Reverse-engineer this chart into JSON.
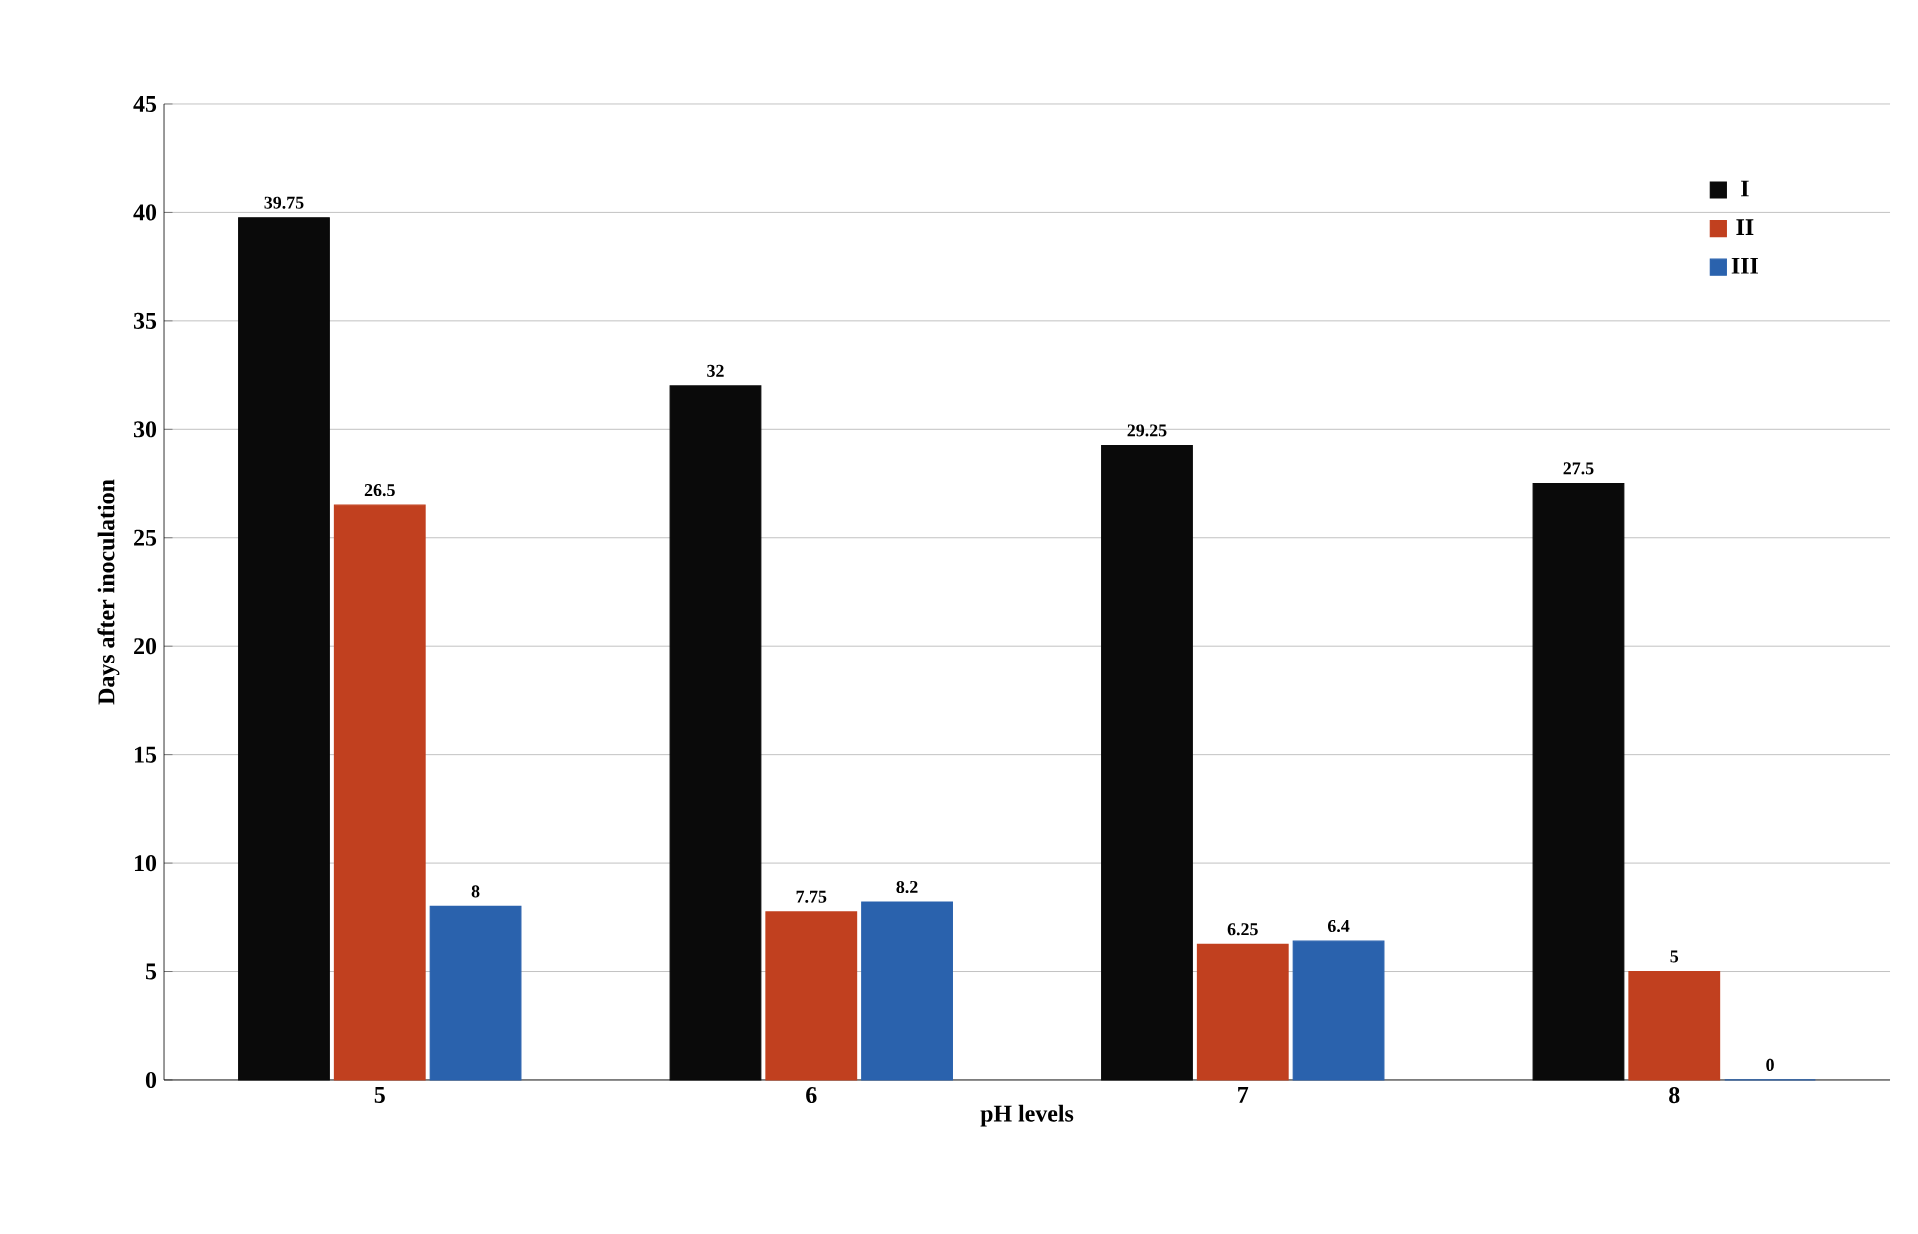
{
  "chart_data": {
    "type": "bar",
    "xlabel": "pH levels",
    "ylabel": "Days after inoculation",
    "categories": [
      "5",
      "6",
      "7",
      "8"
    ],
    "series": [
      {
        "name": "I",
        "color": "#0a0a0a",
        "values": [
          39.75,
          32,
          29.25,
          27.5
        ]
      },
      {
        "name": "II",
        "color": "#c1401f",
        "values": [
          26.5,
          7.75,
          6.25,
          5
        ]
      },
      {
        "name": "III",
        "color": "#2a62ad",
        "values": [
          8,
          8.2,
          6.4,
          0
        ]
      }
    ],
    "ylim": [
      0,
      45
    ],
    "yticks": [
      0,
      5,
      10,
      15,
      20,
      25,
      30,
      35,
      40,
      45
    ],
    "grid": "y",
    "legend": "top right",
    "data_labels": true
  }
}
